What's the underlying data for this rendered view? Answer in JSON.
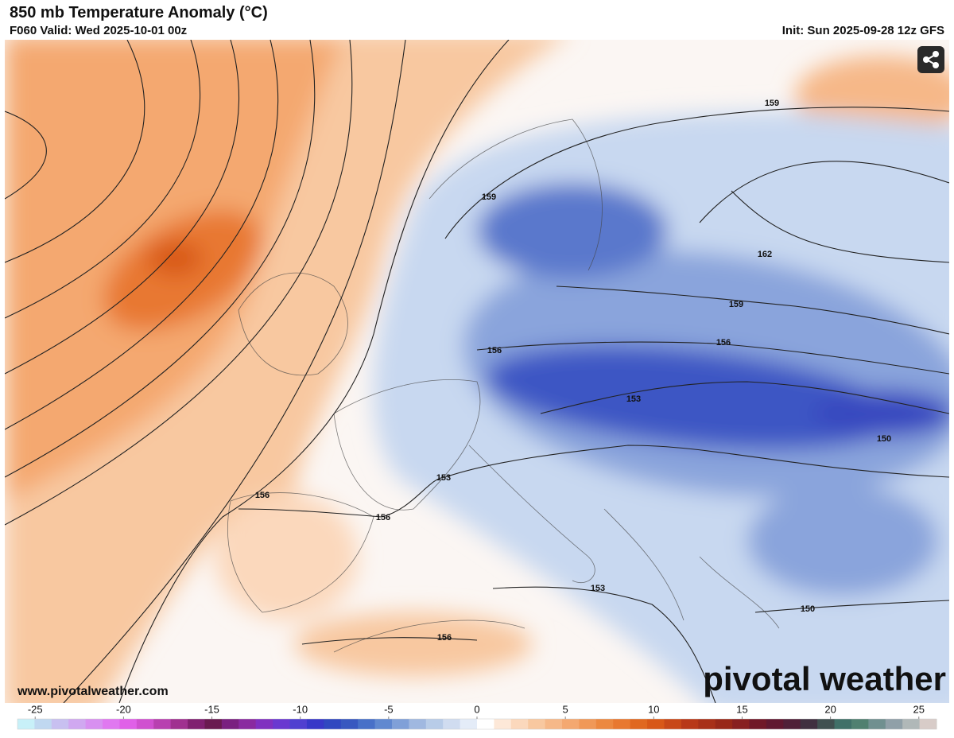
{
  "header": {
    "title": "850 mb Temperature Anomaly (°C)",
    "valid": "F060 Valid: Wed 2025-10-01 00z",
    "init": "Init: Sun 2025-09-28 12z GFS"
  },
  "contours": {
    "labels": [
      "159",
      "159",
      "162",
      "159",
      "156",
      "156",
      "153",
      "150",
      "153",
      "156",
      "156",
      "153",
      "150",
      "156"
    ]
  },
  "footer": {
    "website": "www.pivotalweather.com",
    "logo": "pivotal weather"
  },
  "colorbar": {
    "range": [
      -26,
      26
    ],
    "ticks": [
      -25,
      -20,
      -15,
      -10,
      -5,
      0,
      5,
      10,
      15,
      20,
      25
    ],
    "colors": [
      "#c8f0f8",
      "#c0d8f0",
      "#c8c0f0",
      "#d0a8f0",
      "#d890f0",
      "#e078f0",
      "#e060e8",
      "#d050d0",
      "#b840b0",
      "#a03090",
      "#802070",
      "#6a1a50",
      "#7a2080",
      "#8a2aa0",
      "#8030c0",
      "#6a38d0",
      "#5040d0",
      "#3838c8",
      "#3048c0",
      "#3858c0",
      "#4870c8",
      "#6088d0",
      "#80a0d8",
      "#a0b8e0",
      "#b8cce8",
      "#d0dcf0",
      "#e4ecf8",
      "#ffffff",
      "#fde8d8",
      "#fbd8bc",
      "#f8c8a0",
      "#f6b888",
      "#f4a870",
      "#f09858",
      "#ec8840",
      "#e87830",
      "#e06820",
      "#d85818",
      "#c84818",
      "#b83818",
      "#a83018",
      "#982818",
      "#882020",
      "#701828",
      "#601830",
      "#502038",
      "#403040",
      "#405050",
      "#407068",
      "#508070",
      "#709090",
      "#90a0a8",
      "#b0b8b8",
      "#d8ccc8"
    ]
  }
}
